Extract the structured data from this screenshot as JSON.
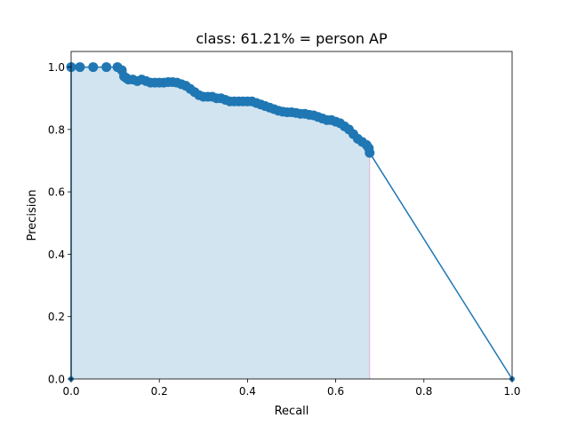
{
  "chart_data": {
    "type": "line",
    "title": "class: 61.21% = person AP",
    "xlabel": "Recall",
    "ylabel": "Precision",
    "xlim": [
      0,
      1
    ],
    "ylim": [
      0,
      1.05
    ],
    "xticks": [
      0,
      0.2,
      0.4,
      0.6,
      0.8,
      1.0
    ],
    "xtick_labels": [
      "0.0",
      "0.2",
      "0.4",
      "0.6",
      "0.8",
      "1.0"
    ],
    "yticks": [
      0,
      0.2,
      0.4,
      0.6,
      0.8,
      1.0
    ],
    "ytick_labels": [
      "0.0",
      "0.2",
      "0.4",
      "0.6",
      "0.8",
      "1.0"
    ],
    "grid": false,
    "colors": {
      "line": "#1f77b4",
      "fill": "#1f77b4",
      "fill_alpha": 0.2,
      "boundary": "#e377c2"
    },
    "series": [
      {
        "x": [
          0.0,
          0.0,
          0.02,
          0.05,
          0.08,
          0.105,
          0.115,
          0.12,
          0.125,
          0.13,
          0.14,
          0.15,
          0.16,
          0.17,
          0.18,
          0.19,
          0.2,
          0.21,
          0.22,
          0.23,
          0.24,
          0.25,
          0.26,
          0.27,
          0.28,
          0.29,
          0.3,
          0.31,
          0.32,
          0.33,
          0.34,
          0.35,
          0.36,
          0.37,
          0.38,
          0.39,
          0.4,
          0.41,
          0.42,
          0.43,
          0.44,
          0.45,
          0.46,
          0.47,
          0.48,
          0.49,
          0.5,
          0.51,
          0.52,
          0.53,
          0.54,
          0.55,
          0.56,
          0.57,
          0.58,
          0.59,
          0.6,
          0.61,
          0.62,
          0.63,
          0.64,
          0.65,
          0.66,
          0.67,
          0.675,
          0.677,
          1.0
        ],
        "y": [
          0.0,
          1.0,
          1.0,
          1.0,
          1.0,
          1.0,
          0.99,
          0.97,
          0.965,
          0.96,
          0.96,
          0.955,
          0.96,
          0.955,
          0.95,
          0.95,
          0.95,
          0.95,
          0.952,
          0.952,
          0.95,
          0.945,
          0.94,
          0.93,
          0.92,
          0.91,
          0.905,
          0.905,
          0.905,
          0.9,
          0.9,
          0.895,
          0.89,
          0.89,
          0.89,
          0.89,
          0.89,
          0.89,
          0.885,
          0.88,
          0.875,
          0.87,
          0.865,
          0.86,
          0.857,
          0.855,
          0.855,
          0.853,
          0.85,
          0.85,
          0.847,
          0.845,
          0.84,
          0.835,
          0.83,
          0.83,
          0.825,
          0.82,
          0.81,
          0.8,
          0.785,
          0.77,
          0.76,
          0.75,
          0.74,
          0.725,
          0.0
        ]
      }
    ],
    "fill_until_x": 0.677
  }
}
